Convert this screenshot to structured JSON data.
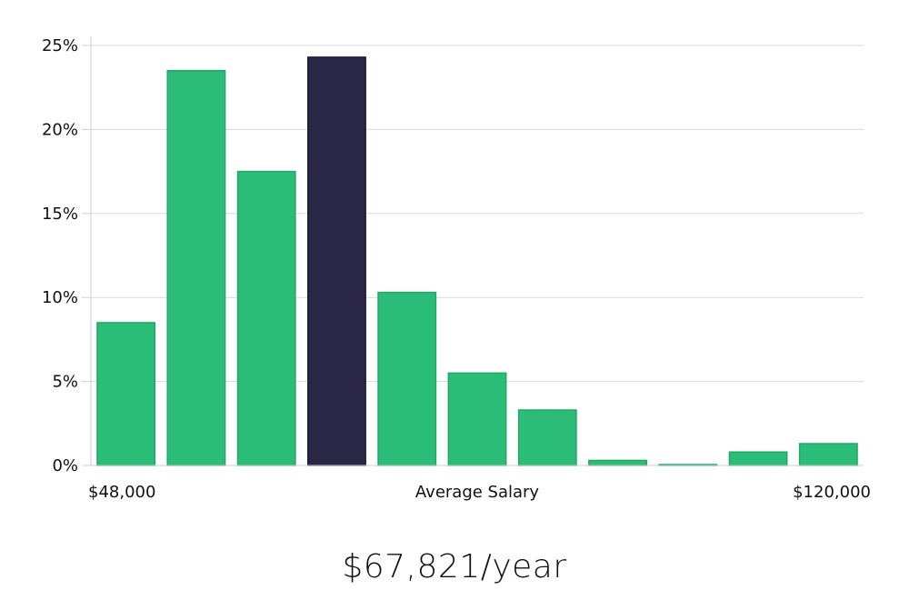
{
  "chart_data": {
    "type": "bar",
    "values": [
      8.5,
      23.5,
      17.5,
      24.3,
      10.3,
      5.5,
      3.3,
      0.3,
      0.05,
      0.8,
      1.3
    ],
    "highlight_index": 3,
    "ylim": [
      0,
      25
    ],
    "yticks": [
      0,
      5,
      10,
      15,
      20,
      25
    ],
    "ytick_suffix": "%",
    "x_range_labels": {
      "min": "$48,000",
      "max": "$120,000"
    },
    "xlabel": "Average Salary",
    "grid": true,
    "colors": {
      "bar": "#2bbd78",
      "bar_edge": "#22a866",
      "highlight": "#2a2747",
      "highlight_edge": "#1c1a36"
    }
  },
  "summary": {
    "salary": "$67,821/year"
  }
}
